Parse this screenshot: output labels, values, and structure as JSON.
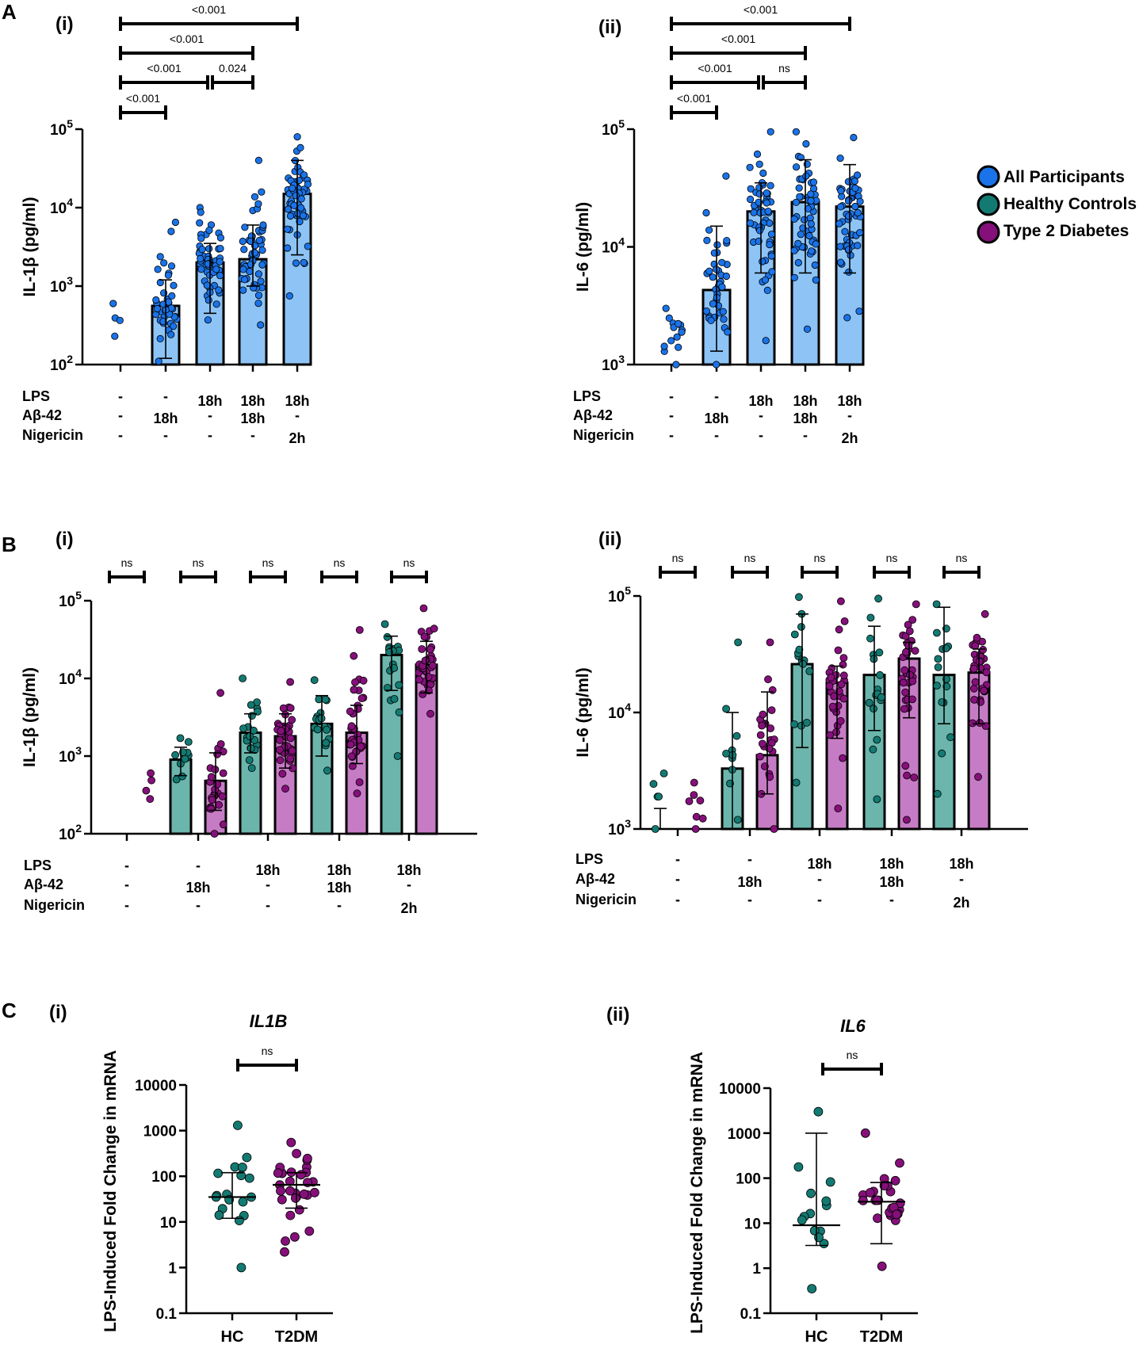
{
  "colors": {
    "all": "#1a73e8",
    "all_bar": "#8ec4f5",
    "hc": "#137a72",
    "hc_bar": "#6bb5ac",
    "t2d": "#85107a",
    "t2d_bar": "#c67cc5",
    "ink": "#000000"
  },
  "panels": {
    "A": "A",
    "B": "B",
    "C": "C",
    "sub_i": "(i)",
    "sub_ii": "(ii)"
  },
  "legend": {
    "items": [
      {
        "label": "All Participants",
        "color": "#1a73e8"
      },
      {
        "label": "Healthy Controls",
        "color": "#137a72"
      },
      {
        "label": "Type 2 Diabetes",
        "color": "#85107a"
      }
    ]
  },
  "conditions": {
    "row_labels": [
      "LPS",
      "Aβ-42",
      "Nigericin"
    ],
    "columns": [
      [
        "-",
        "-",
        "-"
      ],
      [
        "-",
        "18h",
        "-"
      ],
      [
        "18h",
        "-",
        "-"
      ],
      [
        "18h",
        "18h",
        "-"
      ],
      [
        "18h",
        "-",
        "2h"
      ]
    ]
  },
  "chart_data": [
    {
      "id": "A-i",
      "type": "bar",
      "scale": "log",
      "ylabel": "IL-1β (pg/ml)",
      "ylim": [
        100,
        100000
      ],
      "yticks": [
        {
          "base": "10",
          "exp": "2"
        },
        {
          "base": "10",
          "exp": "3"
        },
        {
          "base": "10",
          "exp": "4"
        },
        {
          "base": "10",
          "exp": "5"
        }
      ],
      "groups": [
        "All Participants"
      ],
      "values": [
        [
          null
        ],
        [
          560
        ],
        [
          2000
        ],
        [
          2200
        ],
        [
          15000
        ]
      ],
      "error_low": [
        [
          null
        ],
        [
          120
        ],
        [
          450
        ],
        [
          1000
        ],
        [
          2500
        ]
      ],
      "error_high": [
        [
          null
        ],
        [
          1200
        ],
        [
          3500
        ],
        [
          6000
        ],
        [
          40000
        ]
      ],
      "points_range": [
        [
          [
            230,
            600
          ]
        ],
        [
          [
            110,
            6500
          ]
        ],
        [
          [
            370,
            10000
          ]
        ],
        [
          [
            320,
            40000
          ]
        ],
        [
          [
            750,
            80000
          ]
        ]
      ],
      "point_counts": [
        [
          4
        ],
        [
          40
        ],
        [
          55
        ],
        [
          55
        ],
        [
          55
        ]
      ],
      "comparisons": [
        {
          "from": 0,
          "to": 1,
          "label": "<0.001",
          "level": 0
        },
        {
          "from": 0,
          "to": 2,
          "label": "<0.001",
          "level": 1
        },
        {
          "from": 2,
          "to": 3,
          "label": "0.024",
          "level": 1
        },
        {
          "from": 0,
          "to": 3,
          "label": "<0.001",
          "level": 2
        },
        {
          "from": 0,
          "to": 4,
          "label": "<0.001",
          "level": 3
        }
      ]
    },
    {
      "id": "A-ii",
      "type": "bar",
      "scale": "log",
      "ylabel": "IL-6 (pg/ml)",
      "ylim": [
        1000,
        100000
      ],
      "yticks": [
        {
          "base": "10",
          "exp": "3"
        },
        {
          "base": "10",
          "exp": "4"
        },
        {
          "base": "10",
          "exp": "5"
        }
      ],
      "groups": [
        "All Participants"
      ],
      "values": [
        [
          null
        ],
        [
          4300
        ],
        [
          20000
        ],
        [
          24000
        ],
        [
          22000
        ]
      ],
      "error_low": [
        [
          null
        ],
        [
          1300
        ],
        [
          6000
        ],
        [
          6000
        ],
        [
          6000
        ]
      ],
      "error_high": [
        [
          null
        ],
        [
          15000
        ],
        [
          35000
        ],
        [
          55000
        ],
        [
          50000
        ]
      ],
      "points_range": [
        [
          [
            1000,
            3000
          ]
        ],
        [
          [
            1000,
            40000
          ]
        ],
        [
          [
            1600,
            95000
          ]
        ],
        [
          [
            2000,
            95000
          ]
        ],
        [
          [
            2500,
            85000
          ]
        ]
      ],
      "point_counts": [
        [
          14
        ],
        [
          40
        ],
        [
          55
        ],
        [
          55
        ],
        [
          55
        ]
      ],
      "comparisons": [
        {
          "from": 0,
          "to": 1,
          "label": "<0.001",
          "level": 0
        },
        {
          "from": 0,
          "to": 2,
          "label": "<0.001",
          "level": 1
        },
        {
          "from": 2,
          "to": 3,
          "label": "ns",
          "level": 1
        },
        {
          "from": 0,
          "to": 3,
          "label": "<0.001",
          "level": 2
        },
        {
          "from": 0,
          "to": 4,
          "label": "<0.001",
          "level": 3
        }
      ]
    },
    {
      "id": "B-i",
      "type": "bar",
      "scale": "log",
      "ylabel": "IL-1β (pg/ml)",
      "ylim": [
        100,
        100000
      ],
      "yticks": [
        {
          "base": "10",
          "exp": "2"
        },
        {
          "base": "10",
          "exp": "3"
        },
        {
          "base": "10",
          "exp": "4"
        },
        {
          "base": "10",
          "exp": "5"
        }
      ],
      "groups": [
        "Healthy Controls",
        "Type 2 Diabetes"
      ],
      "values": [
        [
          null,
          null
        ],
        [
          900,
          480
        ],
        [
          2000,
          1800
        ],
        [
          2600,
          2000
        ],
        [
          20000,
          15000
        ]
      ],
      "error_low": [
        [
          null,
          null
        ],
        [
          560,
          200
        ],
        [
          1100,
          700
        ],
        [
          1000,
          800
        ],
        [
          7000,
          6500
        ]
      ],
      "error_high": [
        [
          null,
          null
        ],
        [
          1300,
          1100
        ],
        [
          3500,
          3500
        ],
        [
          6000,
          4500
        ],
        [
          35000,
          30000
        ]
      ],
      "points_range": [
        [
          [
            null,
            null
          ],
          [
            280,
            600
          ]
        ],
        [
          [
            500,
            1700
          ],
          [
            100,
            6500
          ]
        ],
        [
          [
            700,
            10000
          ],
          [
            380,
            9000
          ]
        ],
        [
          [
            650,
            9500
          ],
          [
            330,
            42000
          ]
        ],
        [
          [
            1000,
            50000
          ],
          [
            3500,
            80000
          ]
        ]
      ],
      "point_counts": [
        [
          0,
          4
        ],
        [
          12,
          25
        ],
        [
          20,
          35
        ],
        [
          20,
          35
        ],
        [
          20,
          35
        ]
      ],
      "comparisons": [
        {
          "group": 0,
          "label": "ns"
        },
        {
          "group": 1,
          "label": "ns"
        },
        {
          "group": 2,
          "label": "ns"
        },
        {
          "group": 3,
          "label": "ns"
        },
        {
          "group": 4,
          "label": "ns"
        }
      ]
    },
    {
      "id": "B-ii",
      "type": "bar",
      "scale": "log",
      "ylabel": "IL-6 (pg/ml)",
      "ylim": [
        1000,
        100000
      ],
      "yticks": [
        {
          "base": "10",
          "exp": "3"
        },
        {
          "base": "10",
          "exp": "4"
        },
        {
          "base": "10",
          "exp": "5"
        }
      ],
      "groups": [
        "Healthy Controls",
        "Type 2 Diabetes"
      ],
      "values": [
        [
          null,
          null
        ],
        [
          3300,
          4300
        ],
        [
          26000,
          18000
        ],
        [
          21000,
          29000
        ],
        [
          21000,
          22000
        ]
      ],
      "error_low": [
        [
          1500,
          null
        ],
        [
          1000,
          2000
        ],
        [
          5000,
          6000
        ],
        [
          7000,
          9000
        ],
        [
          8000,
          8000
        ]
      ],
      "error_high": [
        [
          null,
          null
        ],
        [
          10000,
          15000
        ],
        [
          70000,
          25000
        ],
        [
          55000,
          40000
        ],
        [
          80000,
          35000
        ]
      ],
      "points_range": [
        [
          [
            1000,
            3000
          ],
          [
            1000,
            2500
          ]
        ],
        [
          [
            1200,
            40000
          ],
          [
            1000,
            40000
          ]
        ],
        [
          [
            2500,
            98000
          ],
          [
            1500,
            90000
          ]
        ],
        [
          [
            1800,
            95000
          ],
          [
            1200,
            85000
          ]
        ],
        [
          [
            2000,
            85000
          ],
          [
            2800,
            70000
          ]
        ]
      ],
      "point_counts": [
        [
          5,
          7
        ],
        [
          10,
          25
        ],
        [
          16,
          32
        ],
        [
          17,
          33
        ],
        [
          16,
          35
        ]
      ],
      "comparisons": [
        {
          "group": 0,
          "label": "ns"
        },
        {
          "group": 1,
          "label": "ns"
        },
        {
          "group": 2,
          "label": "ns"
        },
        {
          "group": 3,
          "label": "ns"
        },
        {
          "group": 4,
          "label": "ns"
        }
      ]
    },
    {
      "id": "C-i",
      "type": "scatter",
      "scale": "log",
      "title": "IL1B",
      "ylabel": "LPS-Induced Fold Change in mRNA",
      "ylim": [
        0.1,
        10000
      ],
      "yticks": [
        "0.1",
        "1",
        "10",
        "100",
        "1000",
        "10000"
      ],
      "categories": [
        "HC",
        "T2DM"
      ],
      "median": [
        35,
        65
      ],
      "error_low": [
        12,
        20
      ],
      "error_high": [
        120,
        120
      ],
      "points_range": [
        [
          1,
          1300
        ],
        [
          2.2,
          550
        ]
      ],
      "point_counts": [
        18,
        32
      ],
      "comparison": {
        "label": "ns"
      }
    },
    {
      "id": "C-ii",
      "type": "scatter",
      "scale": "log",
      "title": "IL6",
      "ylabel": "LPS-Induced Fold Change in mRNA",
      "ylim": [
        0.1,
        10000
      ],
      "yticks": [
        "0.1",
        "1",
        "10",
        "100",
        "1000",
        "10000"
      ],
      "categories": [
        "HC",
        "T2DM"
      ],
      "median": [
        9,
        30
      ],
      "error_low": [
        3.2,
        3.5
      ],
      "error_high": [
        1000,
        80
      ],
      "points_range": [
        [
          0.35,
          3000
        ],
        [
          1.1,
          1000
        ]
      ],
      "point_counts": [
        14,
        26
      ],
      "comparison": {
        "label": "ns"
      }
    }
  ]
}
